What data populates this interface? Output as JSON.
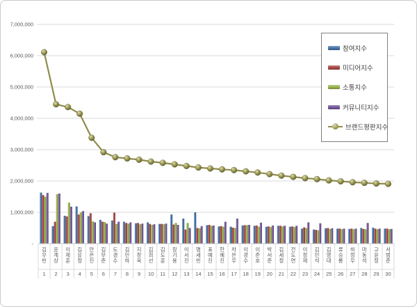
{
  "chart_data": {
    "type": "bar+line combo",
    "title": "",
    "grid": true,
    "grid_color": "#d9d9d9",
    "axis_line_color": "#bfbfbf",
    "axis_text_color": "#595959",
    "legend_position": "top-right",
    "legend_border_color": "#7f7f7f",
    "categories": [
      "김우빈",
      "윤계상",
      "이제훈",
      "김유정",
      "안은진",
      "김무준",
      "도경수",
      "김민하",
      "지창욱",
      "김희선",
      "김도훈",
      "장기용",
      "이서진",
      "명세빈",
      "표예진",
      "한혜진",
      "차은우",
      "이광수",
      "이준호",
      "박서준",
      "김세정",
      "전도연",
      "이정재",
      "김민석",
      "김영대",
      "류승룡",
      "하정우",
      "마동석",
      "고윤정",
      "서범준"
    ],
    "ranks": [
      1,
      2,
      3,
      4,
      5,
      6,
      7,
      8,
      9,
      10,
      11,
      12,
      13,
      14,
      15,
      16,
      17,
      18,
      19,
      20,
      21,
      22,
      23,
      24,
      25,
      26,
      27,
      28,
      29,
      30
    ],
    "y_axis": {
      "min": 0,
      "max": 7000000,
      "step": 1000000,
      "tick_labels": [
        "-",
        "1,000,000",
        "2,000,000",
        "3,000,000",
        "4,000,000",
        "5,000,000",
        "6,000,000",
        "7,000,000"
      ]
    },
    "series": [
      {
        "name": "참여지수",
        "key": "participation-index",
        "type": "bar",
        "color": "#4572A7",
        "values": [
          1630000,
          560000,
          890000,
          1190000,
          880000,
          760000,
          740000,
          700000,
          650000,
          680000,
          630000,
          930000,
          800000,
          1000000,
          590000,
          550000,
          540000,
          580000,
          570000,
          540000,
          570000,
          540000,
          480000,
          450000,
          490000,
          480000,
          470000,
          500000,
          510000,
          480000
        ]
      },
      {
        "name": "미디어지수",
        "key": "media-index",
        "type": "bar",
        "color": "#AA4643",
        "values": [
          1550000,
          700000,
          870000,
          930000,
          970000,
          700000,
          990000,
          660000,
          660000,
          630000,
          630000,
          610000,
          450000,
          500000,
          600000,
          560000,
          510000,
          590000,
          580000,
          550000,
          570000,
          550000,
          520000,
          440000,
          500000,
          480000,
          480000,
          470000,
          480000,
          480000
        ]
      },
      {
        "name": "소통지수",
        "key": "communication-index",
        "type": "bar",
        "color": "#97B24C",
        "values": [
          1500000,
          1580000,
          1310000,
          1000000,
          710000,
          690000,
          630000,
          640000,
          620000,
          600000,
          620000,
          660000,
          660000,
          490000,
          570000,
          540000,
          500000,
          590000,
          540000,
          530000,
          550000,
          530000,
          500000,
          430000,
          470000,
          460000,
          460000,
          460000,
          460000,
          460000
        ]
      },
      {
        "name": "커뮤니티지수",
        "key": "community-index",
        "type": "bar",
        "color": "#74589B",
        "values": [
          1620000,
          1600000,
          1180000,
          1040000,
          680000,
          640000,
          700000,
          680000,
          640000,
          620000,
          640000,
          600000,
          500000,
          560000,
          580000,
          700000,
          800000,
          600000,
          670000,
          580000,
          570000,
          570000,
          680000,
          650000,
          490000,
          480000,
          480000,
          660000,
          480000,
          470000
        ]
      },
      {
        "name": "브랜드평판지수",
        "key": "brand-reputation-index",
        "type": "line",
        "color": "#8E8C4A",
        "marker_color": "#A5A257",
        "values": [
          6110000,
          4450000,
          4360000,
          4150000,
          3380000,
          2920000,
          2760000,
          2720000,
          2680000,
          2620000,
          2580000,
          2530000,
          2480000,
          2430000,
          2400000,
          2370000,
          2350000,
          2310000,
          2270000,
          2220000,
          2170000,
          2130000,
          2090000,
          2060000,
          2020000,
          1990000,
          1960000,
          1940000,
          1920000,
          1910000
        ]
      }
    ]
  }
}
